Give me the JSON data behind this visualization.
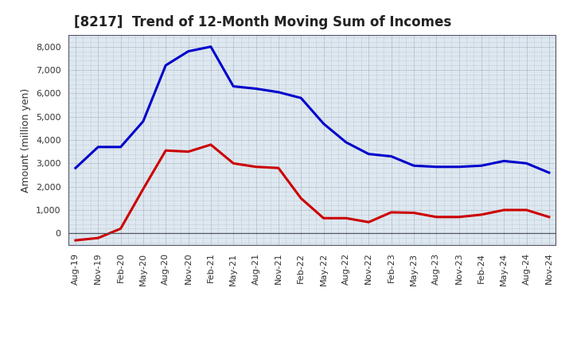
{
  "title": "[8217]  Trend of 12-Month Moving Sum of Incomes",
  "ylabel": "Amount (million yen)",
  "background_color": "#ffffff",
  "plot_bg_color": "#dde8f0",
  "grid_color": "#888899",
  "x_labels": [
    "Aug-19",
    "Nov-19",
    "Feb-20",
    "May-20",
    "Aug-20",
    "Nov-20",
    "Feb-21",
    "May-21",
    "Aug-21",
    "Nov-21",
    "Feb-22",
    "May-22",
    "Aug-22",
    "Nov-22",
    "Feb-23",
    "May-23",
    "Aug-23",
    "Nov-23",
    "Feb-24",
    "May-24",
    "Aug-24",
    "Nov-24"
  ],
  "ordinary_income": [
    2800,
    3700,
    3700,
    4800,
    7200,
    7800,
    8000,
    6300,
    6200,
    6050,
    5800,
    4700,
    3900,
    3400,
    3300,
    2900,
    2850,
    2850,
    2900,
    3100,
    3000,
    2600
  ],
  "net_income": [
    -300,
    -200,
    200,
    1900,
    3550,
    3500,
    3800,
    3000,
    2850,
    2800,
    1500,
    650,
    650,
    480,
    900,
    880,
    700,
    700,
    800,
    1000,
    1000,
    700
  ],
  "ordinary_color": "#0000cc",
  "net_color": "#cc0000",
  "ylim_min": -500,
  "ylim_max": 8500,
  "yticks": [
    0,
    1000,
    2000,
    3000,
    4000,
    5000,
    6000,
    7000,
    8000
  ],
  "line_width": 2.2,
  "title_fontsize": 12,
  "axis_fontsize": 9,
  "tick_fontsize": 8
}
